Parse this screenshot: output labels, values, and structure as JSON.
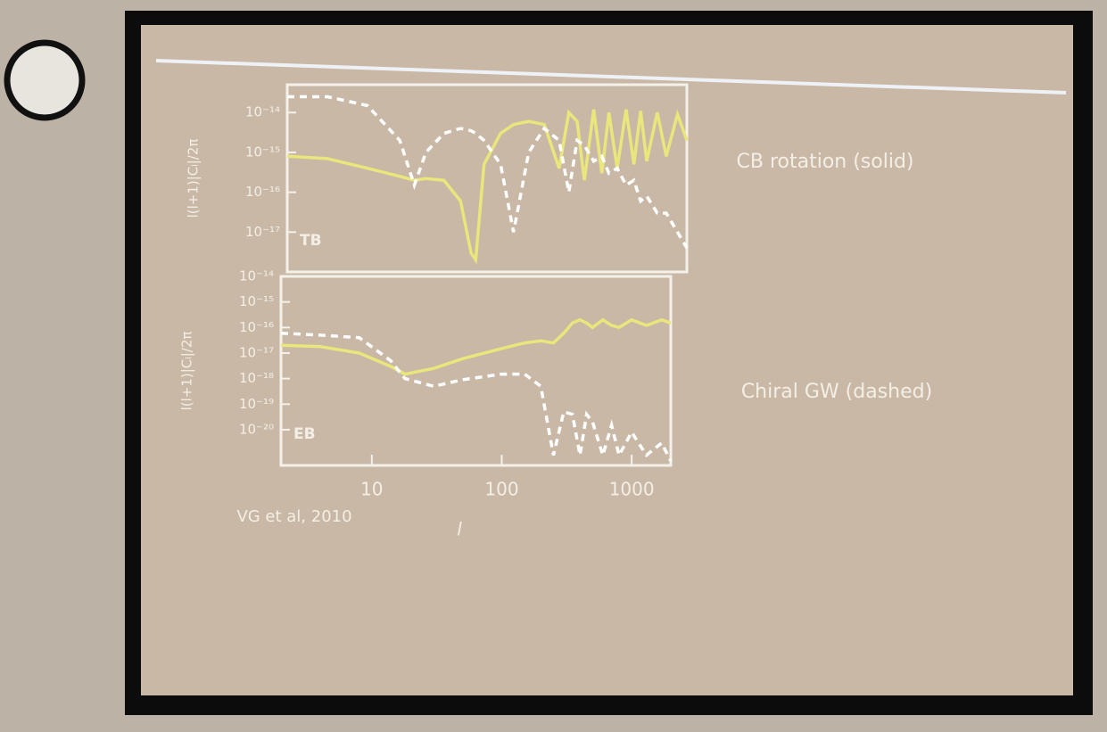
{
  "chart_data": [
    {
      "type": "line",
      "log_x": true,
      "log_y": true,
      "panel_label": "TB",
      "ylabel": "l(l+1)|Cₗ|/2π",
      "xlim": [
        2,
        2000
      ],
      "ylim": [
        1e-18,
        5e-14
      ],
      "yticks": [
        {
          "value": 1e-14,
          "label": "10⁻¹⁴"
        },
        {
          "value": 1e-15,
          "label": "10⁻¹⁵"
        },
        {
          "value": 1e-16,
          "label": "10⁻¹⁶"
        },
        {
          "value": 1e-17,
          "label": "10⁻¹⁷"
        }
      ],
      "x": [
        2,
        4,
        8,
        14,
        18,
        22,
        30,
        40,
        48,
        52,
        60,
        80,
        100,
        130,
        170,
        220,
        260,
        300,
        340,
        400,
        460,
        520,
        600,
        700,
        800,
        900,
        1000,
        1200,
        1400,
        1700,
        2000
      ],
      "series": [
        {
          "color": "#e8e67c",
          "style": "solid",
          "values": [
            8e-16,
            7e-16,
            4e-16,
            2.5e-16,
            2e-16,
            2.2e-16,
            2e-16,
            6e-17,
            3e-18,
            2e-18,
            5e-16,
            3e-15,
            5e-15,
            6e-15,
            5e-15,
            4e-16,
            1e-14,
            6e-15,
            2e-16,
            1.2e-14,
            3e-16,
            1e-14,
            4e-16,
            1.2e-14,
            5e-16,
            1.1e-14,
            6e-16,
            1e-14,
            8e-16,
            9e-15,
            2e-15
          ]
        },
        {
          "color": "#ffffff",
          "style": "dashed",
          "values": [
            2.5e-14,
            2.5e-14,
            1.5e-14,
            2e-15,
            1.5e-16,
            1e-15,
            3e-15,
            4e-15,
            3.5e-15,
            3e-15,
            2e-15,
            5e-16,
            1e-17,
            1e-15,
            4e-15,
            2e-15,
            1e-16,
            2e-15,
            1.5e-15,
            6e-16,
            8e-16,
            3e-16,
            4e-16,
            1.5e-16,
            2e-16,
            6e-17,
            8e-17,
            3e-17,
            3e-17,
            1e-17,
            4e-18
          ]
        }
      ]
    },
    {
      "type": "line",
      "log_x": true,
      "log_y": true,
      "panel_label": "EB",
      "ylabel": "l(l+1)|Cₗ|/2π",
      "xlabel": "l",
      "xlim": [
        2,
        2000
      ],
      "ylim": [
        4e-22,
        1e-14
      ],
      "xticks": [
        10,
        100,
        1000
      ],
      "yticks": [
        {
          "value": 1e-14,
          "label": "10⁻¹⁴"
        },
        {
          "value": 1e-15,
          "label": "10⁻¹⁵"
        },
        {
          "value": 1e-16,
          "label": "10⁻¹⁶"
        },
        {
          "value": 1e-17,
          "label": "10⁻¹⁷"
        },
        {
          "value": 1e-18,
          "label": "10⁻¹⁸"
        },
        {
          "value": 1e-19,
          "label": "10⁻¹⁹"
        },
        {
          "value": 1e-20,
          "label": "10⁻²⁰"
        }
      ],
      "x": [
        2,
        4,
        8,
        14,
        18,
        30,
        50,
        100,
        150,
        200,
        250,
        300,
        350,
        400,
        450,
        500,
        600,
        700,
        800,
        1000,
        1300,
        1700,
        2000
      ],
      "series": [
        {
          "color": "#e8e67c",
          "style": "solid",
          "values": [
            2e-17,
            1.8e-17,
            1e-17,
            3e-18,
            1.5e-18,
            2.5e-18,
            6e-18,
            1.5e-17,
            2.5e-17,
            3e-17,
            2.5e-17,
            6e-17,
            1.5e-16,
            2e-16,
            1.5e-16,
            1e-16,
            2e-16,
            1.2e-16,
            1e-16,
            2e-16,
            1.2e-16,
            2e-16,
            1.5e-16
          ]
        },
        {
          "color": "#ffffff",
          "style": "dashed",
          "values": [
            6e-17,
            5e-17,
            4e-17,
            5e-18,
            1e-18,
            5e-19,
            9e-19,
            1.5e-18,
            1.5e-18,
            5e-19,
            1e-21,
            5e-20,
            4e-20,
            1e-21,
            4e-20,
            2e-20,
            1e-21,
            1.5e-20,
            1e-21,
            8e-21,
            1e-21,
            3e-21,
            6e-22
          ]
        }
      ]
    }
  ],
  "slide": {
    "annotations": [
      "CB rotation (solid)",
      "Chiral GW (dashed)"
    ],
    "credit": "VG et al, 2010"
  }
}
